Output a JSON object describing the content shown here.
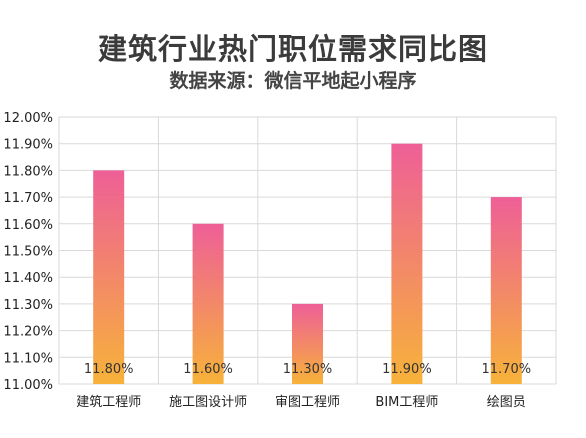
{
  "chart_data": {
    "type": "bar",
    "title": "建筑行业热门职位需求同比图",
    "subtitle": "数据来源：微信平地起小程序",
    "categories": [
      "建筑工程师",
      "施工图设计师",
      "审图工程师",
      "BIM工程师",
      "绘图员"
    ],
    "values": [
      11.8,
      11.6,
      11.3,
      11.9,
      11.7
    ],
    "data_labels": [
      "11.80%",
      "11.60%",
      "11.30%",
      "11.90%",
      "11.70%"
    ],
    "ylim": [
      11.0,
      12.0
    ],
    "yticks": [
      "11.00%",
      "11.10%",
      "11.20%",
      "11.30%",
      "11.40%",
      "11.50%",
      "11.60%",
      "11.70%",
      "11.80%",
      "11.90%",
      "12.00%"
    ],
    "xlabel": "",
    "ylabel": "",
    "grid": true,
    "legend": "none",
    "colors": {
      "bar_top": "#ee5f97",
      "bar_bottom": "#f7b23a",
      "grid": "#d9d9d9",
      "axis_text": "#222222"
    }
  }
}
